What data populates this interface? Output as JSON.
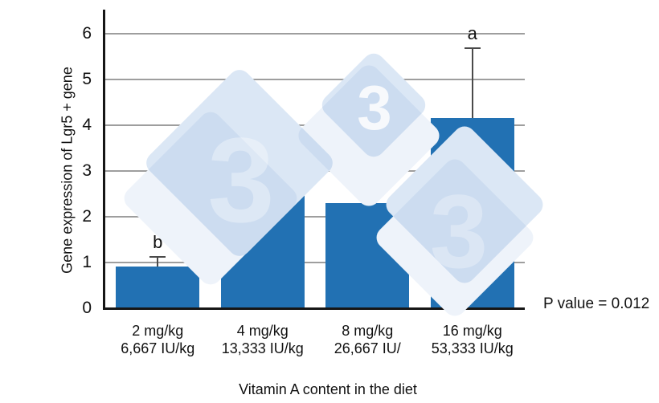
{
  "chart_data": {
    "type": "bar",
    "title": "",
    "ylabel": "Gene expression of Lgr5 + gene",
    "xlabel": "Vitamin A content in the diet",
    "ylim": [
      0,
      6
    ],
    "yticks": [
      "0",
      "1",
      "2",
      "3",
      "4",
      "5",
      "6"
    ],
    "grid": true,
    "legend": "none",
    "categories_line1": [
      "2 mg/kg",
      "4 mg/kg",
      "8 mg/kg",
      "16 mg/kg"
    ],
    "categories_line2": [
      "6,667 IU/kg",
      "13,333 IU/kg",
      "26,667 IU/",
      "53,333 IU/kg"
    ],
    "values": [
      0.92,
      2.75,
      2.3,
      4.16
    ],
    "error_upper": [
      0.2,
      0.79,
      0.44,
      1.52
    ],
    "significance_letters": [
      "b",
      "ab",
      "ab",
      "a"
    ],
    "bar_color": "#2271b3",
    "annotation": "P value = 0.012"
  },
  "watermark": {
    "glyph": "3",
    "diamond_color": "#dbe7f5"
  }
}
